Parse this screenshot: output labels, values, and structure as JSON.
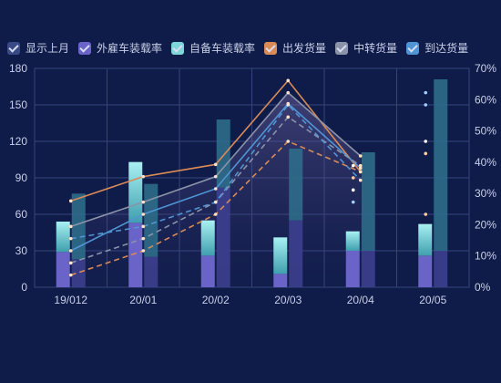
{
  "legend": [
    {
      "label": "显示上月",
      "color": "#3a4a86"
    },
    {
      "label": "外雇车装载率",
      "color": "#6a63c8"
    },
    {
      "label": "自备车装载率",
      "color": "#7fd6d9"
    },
    {
      "label": "出发货量",
      "color": "#d98a55"
    },
    {
      "label": "中转货量",
      "color": "#8b93a8"
    },
    {
      "label": "到达货量",
      "color": "#4f94d4"
    }
  ],
  "chart_data": {
    "type": "bar",
    "categories": [
      "19/012",
      "20/01",
      "20/02",
      "20/03",
      "20/04",
      "20/05"
    ],
    "y_left": {
      "ticks": [
        0,
        30,
        60,
        90,
        120,
        150,
        180
      ],
      "ylim": [
        0,
        180
      ]
    },
    "y_right": {
      "ticks": [
        "0%",
        "10%",
        "20%",
        "30%",
        "40%",
        "50%",
        "60%",
        "70%"
      ],
      "ylim": [
        0,
        70
      ]
    },
    "bars": [
      {
        "name": "外雇车装载率",
        "color": "#6a63c8",
        "values": [
          29,
          53,
          26,
          11,
          30,
          26
        ]
      },
      {
        "name": "自备车装载率",
        "color": "#7fd6d9",
        "values": [
          25,
          50,
          29,
          30,
          16,
          26
        ]
      },
      {
        "name": "外雇车装载率 (上月)",
        "color": "#3d3f8e",
        "values": [
          23,
          25,
          82,
          55,
          30,
          30
        ]
      },
      {
        "name": "自备车装载率 (上月)",
        "color": "#2f6d8a",
        "values": [
          54,
          60,
          56,
          59,
          81,
          141
        ]
      }
    ],
    "lines": [
      {
        "name": "出发货量",
        "color": "#d98a55",
        "dashed": false,
        "values": [
          71,
          91,
          101,
          170,
          95
        ]
      },
      {
        "name": "中转货量",
        "color": "#8b93a8",
        "dashed": false,
        "values": [
          50,
          70,
          91,
          160,
          108
        ]
      },
      {
        "name": "到达货量",
        "color": "#4f94d4",
        "dashed": false,
        "values": [
          30,
          60,
          81,
          151,
          98
        ]
      },
      {
        "name": "出发货量 (上月)",
        "color": "#d98a55",
        "dashed": true,
        "values": [
          10,
          30,
          60,
          120,
          95
        ]
      },
      {
        "name": "中转货量 (上月)",
        "color": "#8b93a8",
        "dashed": true,
        "values": [
          20,
          40,
          70,
          140,
          100
        ]
      },
      {
        "name": "到达货量 (上月)",
        "color": "#4f94d4",
        "dashed": true,
        "values": [
          40,
          50,
          70,
          150,
          88
        ]
      }
    ],
    "dots_20_05": [
      {
        "color": "#9fd0ff",
        "value": 160
      },
      {
        "color": "#9fd0ff",
        "value": 150
      },
      {
        "color": "#ffffff",
        "value": 120
      },
      {
        "color": "#ffd0a8",
        "value": 110
      },
      {
        "color": "#ffd0a8",
        "value": 60
      }
    ],
    "dots_20_04": [
      {
        "color": "#ffffff",
        "value": 100
      },
      {
        "color": "#ffd0a8",
        "value": 90
      },
      {
        "color": "#ffffff",
        "value": 80
      },
      {
        "color": "#9fd0ff",
        "value": 70
      }
    ]
  }
}
